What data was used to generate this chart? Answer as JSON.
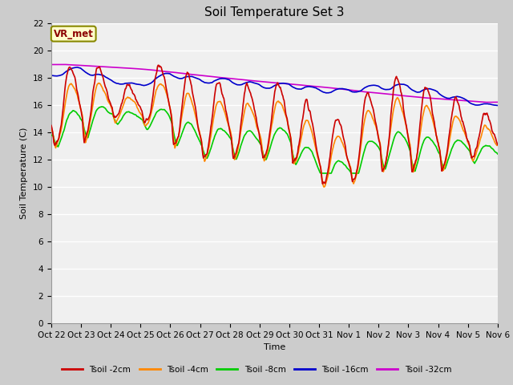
{
  "title": "Soil Temperature Set 3",
  "xlabel": "Time",
  "ylabel": "Soil Temperature (C)",
  "ylim": [
    0,
    22
  ],
  "yticks": [
    0,
    2,
    4,
    6,
    8,
    10,
    12,
    14,
    16,
    18,
    20,
    22
  ],
  "xtick_labels": [
    "Oct 22",
    "Oct 23",
    "Oct 24",
    "Oct 25",
    "Oct 26",
    "Oct 27",
    "Oct 28",
    "Oct 29",
    "Oct 30",
    "Oct 31",
    "Nov 1",
    "Nov 2",
    "Nov 3",
    "Nov 4",
    "Nov 5",
    "Nov 6"
  ],
  "colors": {
    "Tsoil -2cm": "#cc0000",
    "Tsoil -4cm": "#ff8800",
    "Tsoil -8cm": "#00cc00",
    "Tsoil -16cm": "#0000cc",
    "Tsoil -32cm": "#cc00cc"
  },
  "line_width": 1.2,
  "fig_bg_color": "#cccccc",
  "plot_bg_color": "#f0f0f0",
  "grid_color": "#ffffff",
  "annotation_text": "VR_met",
  "annotation_bg": "#ffffcc",
  "annotation_border": "#999900",
  "title_fontsize": 11,
  "axis_fontsize": 8,
  "tick_fontsize": 7.5
}
